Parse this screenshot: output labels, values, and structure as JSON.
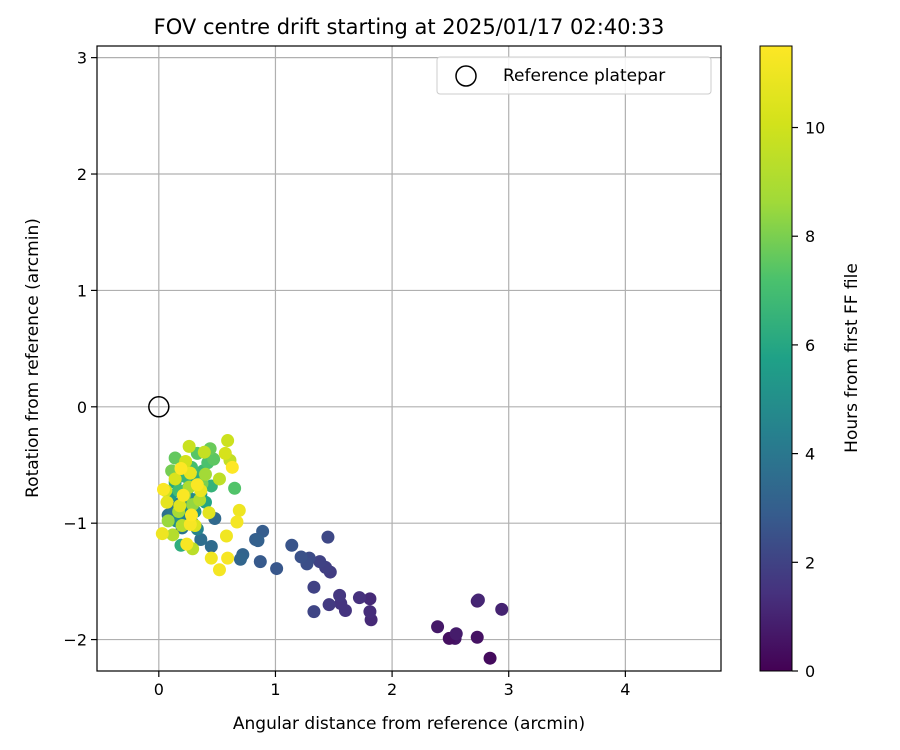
{
  "chart_data": {
    "type": "scatter",
    "title": "FOV centre drift starting at 2025/01/17 02:40:33",
    "xlabel": "Angular distance from reference (arcmin)",
    "ylabel": "Rotation from reference (arcmin)",
    "xlim": [
      -0.53,
      4.82
    ],
    "ylim": [
      -2.27,
      3.1
    ],
    "xticks": [
      0,
      1,
      2,
      3,
      4
    ],
    "yticks": [
      -2,
      -1,
      0,
      1,
      2,
      3
    ],
    "grid": true,
    "legend": {
      "placement": "top-right",
      "entries": [
        "Reference platepar"
      ]
    },
    "reference_point": {
      "label": "Reference platepar",
      "x": 0,
      "y": 0,
      "marker": "open circle"
    },
    "colorbar": {
      "label": "Hours from first FF file",
      "range": [
        0,
        11.5
      ],
      "ticks": [
        0,
        2,
        4,
        6,
        8,
        10
      ],
      "colormap": "viridis"
    },
    "series": [
      {
        "color_by": "hours",
        "points": [
          {
            "x": 2.84,
            "y": -2.16,
            "c": 0.3
          },
          {
            "x": 2.73,
            "y": -1.98,
            "c": 0.5
          },
          {
            "x": 2.54,
            "y": -1.99,
            "c": 0.6
          },
          {
            "x": 2.49,
            "y": -1.99,
            "c": 0.4
          },
          {
            "x": 2.39,
            "y": -1.89,
            "c": 0.7
          },
          {
            "x": 2.55,
            "y": -1.95,
            "c": 0.8
          },
          {
            "x": 2.73,
            "y": -1.67,
            "c": 0.9
          },
          {
            "x": 2.94,
            "y": -1.74,
            "c": 1.0
          },
          {
            "x": 2.74,
            "y": -1.66,
            "c": 1.1
          },
          {
            "x": 1.82,
            "y": -1.83,
            "c": 1.2
          },
          {
            "x": 1.81,
            "y": -1.65,
            "c": 1.2
          },
          {
            "x": 1.81,
            "y": -1.76,
            "c": 1.3
          },
          {
            "x": 1.72,
            "y": -1.64,
            "c": 1.4
          },
          {
            "x": 1.6,
            "y": -1.75,
            "c": 1.5
          },
          {
            "x": 1.56,
            "y": -1.69,
            "c": 1.5
          },
          {
            "x": 1.55,
            "y": -1.62,
            "c": 1.6
          },
          {
            "x": 1.46,
            "y": -1.7,
            "c": 1.7
          },
          {
            "x": 1.47,
            "y": -1.42,
            "c": 1.8
          },
          {
            "x": 1.43,
            "y": -1.38,
            "c": 1.9
          },
          {
            "x": 1.38,
            "y": -1.33,
            "c": 2.0
          },
          {
            "x": 1.33,
            "y": -1.55,
            "c": 2.0
          },
          {
            "x": 1.33,
            "y": -1.76,
            "c": 2.1
          },
          {
            "x": 1.45,
            "y": -1.12,
            "c": 2.2
          },
          {
            "x": 1.29,
            "y": -1.3,
            "c": 2.3
          },
          {
            "x": 1.27,
            "y": -1.35,
            "c": 2.4
          },
          {
            "x": 1.22,
            "y": -1.29,
            "c": 2.5
          },
          {
            "x": 1.14,
            "y": -1.19,
            "c": 2.6
          },
          {
            "x": 1.01,
            "y": -1.39,
            "c": 2.7
          },
          {
            "x": 0.87,
            "y": -1.33,
            "c": 2.8
          },
          {
            "x": 0.89,
            "y": -1.07,
            "c": 2.9
          },
          {
            "x": 0.83,
            "y": -1.14,
            "c": 3.0
          },
          {
            "x": 0.85,
            "y": -1.15,
            "c": 3.1
          },
          {
            "x": 0.72,
            "y": -1.27,
            "c": 3.2
          },
          {
            "x": 0.7,
            "y": -1.31,
            "c": 3.3
          },
          {
            "x": 0.48,
            "y": -0.96,
            "c": 3.4
          },
          {
            "x": 0.45,
            "y": -1.2,
            "c": 3.5
          },
          {
            "x": 0.36,
            "y": -1.14,
            "c": 3.6
          },
          {
            "x": 0.08,
            "y": -0.93,
            "c": 3.7
          },
          {
            "x": 0.2,
            "y": -1.04,
            "c": 3.8
          },
          {
            "x": 0.29,
            "y": -1.0,
            "c": 3.9
          },
          {
            "x": 0.12,
            "y": -0.88,
            "c": 4.0
          },
          {
            "x": 0.18,
            "y": -0.83,
            "c": 4.2
          },
          {
            "x": 0.24,
            "y": -0.95,
            "c": 4.4
          },
          {
            "x": 0.33,
            "y": -1.05,
            "c": 4.5
          },
          {
            "x": 0.27,
            "y": -0.79,
            "c": 4.7
          },
          {
            "x": 0.15,
            "y": -0.98,
            "c": 4.9
          },
          {
            "x": 0.21,
            "y": -0.88,
            "c": 5.0
          },
          {
            "x": 0.31,
            "y": -0.9,
            "c": 5.2
          },
          {
            "x": 0.36,
            "y": -0.75,
            "c": 5.4
          },
          {
            "x": 0.1,
            "y": -0.76,
            "c": 5.5
          },
          {
            "x": 0.25,
            "y": -0.7,
            "c": 5.7
          },
          {
            "x": 0.4,
            "y": -0.82,
            "c": 5.9
          },
          {
            "x": 0.14,
            "y": -0.65,
            "c": 6.0
          },
          {
            "x": 0.32,
            "y": -0.62,
            "c": 6.2
          },
          {
            "x": 0.19,
            "y": -1.19,
            "c": 6.3
          },
          {
            "x": 0.45,
            "y": -0.68,
            "c": 6.5
          },
          {
            "x": 0.23,
            "y": -0.6,
            "c": 6.6
          },
          {
            "x": 0.38,
            "y": -0.55,
            "c": 6.8
          },
          {
            "x": 0.17,
            "y": -0.72,
            "c": 6.9
          },
          {
            "x": 0.28,
            "y": -0.52,
            "c": 7.0
          },
          {
            "x": 0.42,
            "y": -0.48,
            "c": 7.2
          },
          {
            "x": 0.65,
            "y": -0.7,
            "c": 7.3
          },
          {
            "x": 0.33,
            "y": -0.4,
            "c": 7.4
          },
          {
            "x": 0.47,
            "y": -0.45,
            "c": 7.5
          },
          {
            "x": 0.14,
            "y": -0.44,
            "c": 7.6
          },
          {
            "x": 0.44,
            "y": -0.36,
            "c": 7.7
          },
          {
            "x": 0.11,
            "y": -0.55,
            "c": 7.9
          },
          {
            "x": 0.37,
            "y": -0.66,
            "c": 8.0
          },
          {
            "x": 0.22,
            "y": -0.76,
            "c": 8.2
          },
          {
            "x": 0.29,
            "y": -0.84,
            "c": 8.4
          },
          {
            "x": 0.08,
            "y": -0.98,
            "c": 8.5
          },
          {
            "x": 0.4,
            "y": -0.58,
            "c": 8.7
          },
          {
            "x": 0.17,
            "y": -0.9,
            "c": 8.8
          },
          {
            "x": 0.26,
            "y": -0.69,
            "c": 9.0
          },
          {
            "x": 0.35,
            "y": -0.8,
            "c": 9.1
          },
          {
            "x": 0.12,
            "y": -1.1,
            "c": 9.2
          },
          {
            "x": 0.2,
            "y": -1.02,
            "c": 9.3
          },
          {
            "x": 0.29,
            "y": -1.22,
            "c": 9.4
          },
          {
            "x": 0.52,
            "y": -0.62,
            "c": 9.5
          },
          {
            "x": 0.61,
            "y": -0.46,
            "c": 9.6
          },
          {
            "x": 0.39,
            "y": -0.39,
            "c": 9.7
          },
          {
            "x": 0.26,
            "y": -0.34,
            "c": 9.8
          },
          {
            "x": 0.59,
            "y": -0.29,
            "c": 9.9
          },
          {
            "x": 0.06,
            "y": -0.72,
            "c": 10.0
          },
          {
            "x": 0.23,
            "y": -0.47,
            "c": 10.1
          },
          {
            "x": 0.57,
            "y": -0.4,
            "c": 10.2
          },
          {
            "x": 0.14,
            "y": -0.62,
            "c": 10.3
          },
          {
            "x": 0.31,
            "y": -1.02,
            "c": 10.4
          },
          {
            "x": 0.18,
            "y": -0.85,
            "c": 10.5
          },
          {
            "x": 0.43,
            "y": -0.91,
            "c": 10.6
          },
          {
            "x": 0.07,
            "y": -0.82,
            "c": 10.7
          },
          {
            "x": 0.27,
            "y": -0.57,
            "c": 10.8
          },
          {
            "x": 0.36,
            "y": -0.72,
            "c": 10.9
          },
          {
            "x": 0.03,
            "y": -1.09,
            "c": 11.0
          },
          {
            "x": 0.69,
            "y": -0.89,
            "c": 11.0
          },
          {
            "x": 0.58,
            "y": -1.11,
            "c": 11.1
          },
          {
            "x": 0.45,
            "y": -1.3,
            "c": 11.1
          },
          {
            "x": 0.52,
            "y": -1.4,
            "c": 11.2
          },
          {
            "x": 0.67,
            "y": -0.99,
            "c": 11.2
          },
          {
            "x": 0.24,
            "y": -1.18,
            "c": 11.3
          },
          {
            "x": 0.59,
            "y": -1.3,
            "c": 11.3
          },
          {
            "x": 0.27,
            "y": -1.01,
            "c": 11.3
          },
          {
            "x": 0.21,
            "y": -0.76,
            "c": 11.4
          },
          {
            "x": 0.33,
            "y": -0.67,
            "c": 11.4
          },
          {
            "x": 0.04,
            "y": -0.71,
            "c": 11.4
          },
          {
            "x": 0.28,
            "y": -0.93,
            "c": 11.5
          },
          {
            "x": 0.19,
            "y": -0.53,
            "c": 11.5
          },
          {
            "x": 0.63,
            "y": -0.52,
            "c": 11.5
          }
        ]
      }
    ]
  }
}
